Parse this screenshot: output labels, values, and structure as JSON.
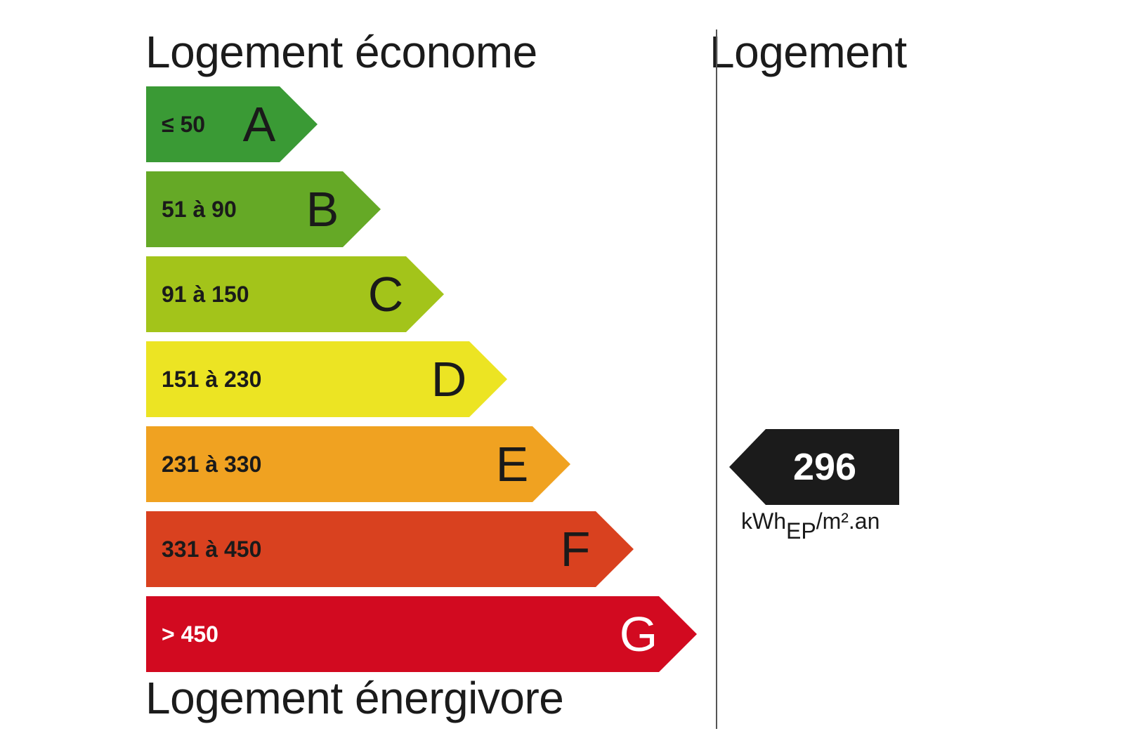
{
  "titles": {
    "top": "Logement économe",
    "bottom": "Logement énergivore",
    "right": "Logement"
  },
  "classes": [
    {
      "letter": "A",
      "range": "≤ 50",
      "color": "#3a9a35",
      "text_color": "#1a1a1a"
    },
    {
      "letter": "B",
      "range": "51 à 90",
      "color": "#65a926",
      "text_color": "#1a1a1a"
    },
    {
      "letter": "C",
      "range": "91 à 150",
      "color": "#a3c41a",
      "text_color": "#1a1a1a"
    },
    {
      "letter": "D",
      "range": "151 à 230",
      "color": "#ece423",
      "text_color": "#1a1a1a"
    },
    {
      "letter": "E",
      "range": "231 à 330",
      "color": "#f0a221",
      "text_color": "#1a1a1a"
    },
    {
      "letter": "F",
      "range": "331 à 450",
      "color": "#d9411f",
      "text_color": "#1a1a1a"
    },
    {
      "letter": "G",
      "range": "> 450",
      "color": "#d20a20",
      "text_color": "#ffffff"
    }
  ],
  "result": {
    "value": "296",
    "marker_color": "#1b1b1b",
    "unit_main": "kWh",
    "unit_sub": "EP",
    "unit_tail": "/m².an"
  }
}
